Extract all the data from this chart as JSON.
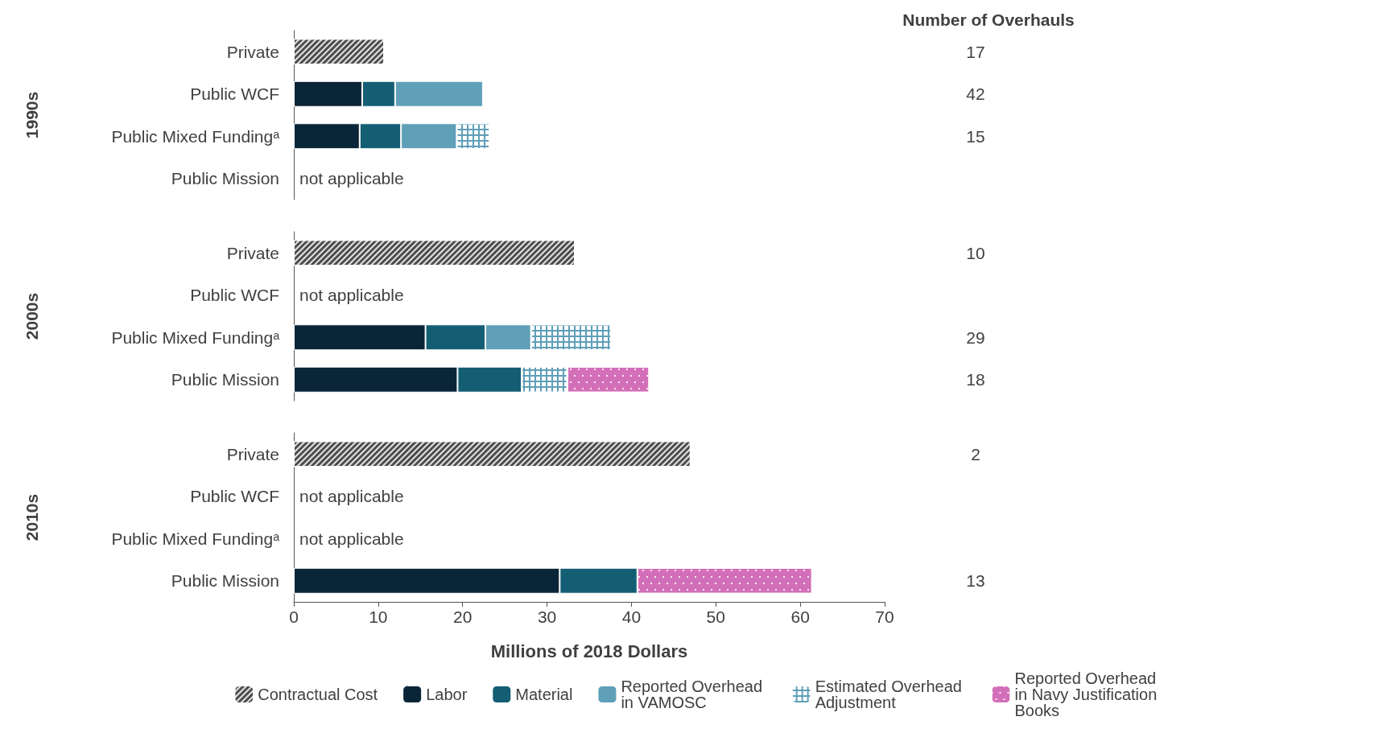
{
  "chart_data": [
    {
      "type": "bar",
      "orientation": "horizontal",
      "stacked": true,
      "ylabel": "1990s",
      "categories": [
        "Private",
        "Public WCF",
        "Public Mixed Fundingᵃ",
        "Public Mission"
      ],
      "xlim": [
        0,
        70
      ],
      "xticks": [
        0,
        10,
        20,
        30,
        40,
        50,
        60,
        70
      ],
      "tick_labels": "y",
      "series": [
        {
          "color": "#4d4d4d",
          "values": [
            10.7,
            null,
            null,
            null
          ]
        },
        {
          "color": "#0b2538",
          "values": [
            null,
            8.1,
            7.8,
            null
          ]
        },
        {
          "color": "#145e74",
          "values": [
            null,
            3.9,
            4.9,
            null
          ]
        },
        {
          "color": "#5f9fb8",
          "values": [
            null,
            10.4,
            6.6,
            null
          ]
        },
        {
          "color": "#5f9fb8",
          "values": [
            null,
            null,
            3.9,
            null
          ]
        },
        {
          "color": "#d36fb8",
          "values": [
            null,
            null,
            null,
            null
          ]
        }
      ],
      "y2label": "Number of Overhauls",
      "y2_categories": [
        "17",
        "42",
        "15",
        null
      ],
      "annotations": [
        "not applicable"
      ]
    },
    {
      "type": "bar",
      "orientation": "horizontal",
      "stacked": true,
      "ylabel": "2000s",
      "categories": [
        "Private",
        "Public WCF",
        "Public Mixed Fundingᵃ",
        "Public Mission"
      ],
      "xlim": [
        0,
        70
      ],
      "xticks": [
        0,
        10,
        20,
        30,
        40,
        50,
        60,
        70
      ],
      "tick_labels": "y",
      "series": [
        {
          "color": "#4d4d4d",
          "values": [
            33.3,
            null,
            null,
            null
          ]
        },
        {
          "color": "#0b2538",
          "values": [
            null,
            null,
            15.6,
            19.4
          ]
        },
        {
          "color": "#145e74",
          "values": [
            null,
            null,
            7.1,
            7.6
          ]
        },
        {
          "color": "#5f9fb8",
          "values": [
            null,
            null,
            5.4,
            null
          ]
        },
        {
          "color": "#5f9fb8",
          "values": [
            null,
            null,
            9.5,
            5.4
          ]
        },
        {
          "color": "#d36fb8",
          "values": [
            null,
            null,
            null,
            9.7
          ]
        }
      ],
      "y2_categories": [
        "10",
        null,
        "29",
        "18"
      ],
      "annotations": [
        "not applicable"
      ]
    },
    {
      "type": "bar",
      "orientation": "horizontal",
      "stacked": true,
      "ylabel": "2010s",
      "xlabel": "Millions of 2018 Dollars",
      "categories": [
        "Private",
        "Public WCF",
        "Public Mixed Fundingᵃ",
        "Public Mission"
      ],
      "xlim": [
        0,
        70
      ],
      "xticks": [
        0,
        10,
        20,
        30,
        40,
        50,
        60,
        70
      ],
      "legend": "bottom",
      "series": [
        {
          "name": "Contractual Cost",
          "color": "#4d4d4d",
          "values": [
            47.0,
            null,
            null,
            null
          ]
        },
        {
          "name": "Labor",
          "color": "#0b2538",
          "values": [
            null,
            null,
            null,
            31.5
          ]
        },
        {
          "name": "Material",
          "color": "#145e74",
          "values": [
            null,
            null,
            null,
            9.2
          ]
        },
        {
          "name": "Reported Overhead in VAMOSC",
          "color": "#5f9fb8",
          "values": [
            null,
            null,
            null,
            null
          ]
        },
        {
          "name": "Estimated Overhead Adjustment",
          "color": "#5f9fb8",
          "values": [
            null,
            null,
            null,
            null
          ]
        },
        {
          "name": "Reported Overhead in Navy Justification Books",
          "color": "#d36fb8",
          "values": [
            null,
            null,
            null,
            20.7
          ]
        }
      ],
      "y2_categories": [
        "2",
        null,
        null,
        "13"
      ],
      "annotations": [
        "not applicable",
        "not applicable"
      ]
    }
  ]
}
